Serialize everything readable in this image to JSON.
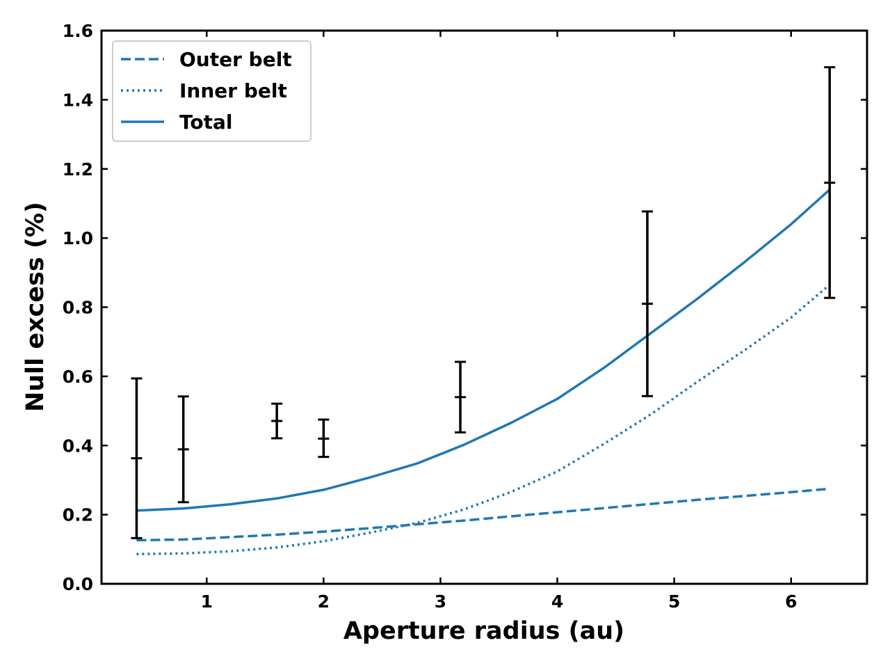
{
  "chart_data": {
    "type": "line",
    "xlabel": "Aperture radius (au)",
    "ylabel": "Null excess (%)",
    "xlim": [
      0.1,
      6.65
    ],
    "ylim": [
      0.0,
      1.6
    ],
    "xticks": [
      1,
      2,
      3,
      4,
      5,
      6
    ],
    "yticks": [
      0.0,
      0.2,
      0.4,
      0.6,
      0.8,
      1.0,
      1.2,
      1.4,
      1.6
    ],
    "xtick_labels": [
      "1",
      "2",
      "3",
      "4",
      "5",
      "6"
    ],
    "ytick_labels": [
      "0.0",
      "0.2",
      "0.4",
      "0.6",
      "0.8",
      "1.0",
      "1.2",
      "1.4",
      "1.6"
    ],
    "grid": false,
    "legend_position": "top-left",
    "color": "#1f77b4",
    "series": [
      {
        "name": "Outer belt",
        "style": "dashed",
        "x": [
          0.4,
          0.8,
          1.2,
          1.6,
          2.0,
          2.4,
          2.8,
          3.2,
          3.6,
          4.0,
          4.4,
          4.8,
          5.2,
          5.6,
          6.0,
          6.33
        ],
        "y": [
          0.126,
          0.128,
          0.135,
          0.142,
          0.151,
          0.161,
          0.172,
          0.183,
          0.195,
          0.207,
          0.219,
          0.231,
          0.243,
          0.254,
          0.265,
          0.275
        ]
      },
      {
        "name": "Inner belt",
        "style": "dotted",
        "x": [
          0.4,
          0.8,
          1.2,
          1.6,
          2.0,
          2.4,
          2.8,
          3.2,
          3.6,
          4.0,
          4.4,
          4.8,
          5.2,
          5.6,
          6.0,
          6.33
        ],
        "y": [
          0.086,
          0.088,
          0.094,
          0.105,
          0.123,
          0.148,
          0.176,
          0.215,
          0.265,
          0.325,
          0.405,
          0.49,
          0.585,
          0.675,
          0.77,
          0.865
        ]
      },
      {
        "name": "Total",
        "style": "solid",
        "x": [
          0.4,
          0.8,
          1.2,
          1.6,
          2.0,
          2.4,
          2.8,
          3.2,
          3.6,
          4.0,
          4.4,
          4.8,
          5.2,
          5.6,
          6.0,
          6.33
        ],
        "y": [
          0.212,
          0.218,
          0.23,
          0.247,
          0.272,
          0.308,
          0.348,
          0.402,
          0.465,
          0.535,
          0.625,
          0.725,
          0.825,
          0.93,
          1.04,
          1.14
        ]
      }
    ],
    "errorbars": [
      {
        "x": 0.4,
        "y": 0.363,
        "ylow": 0.132,
        "yhigh": 0.594
      },
      {
        "x": 0.8,
        "y": 0.389,
        "ylow": 0.236,
        "yhigh": 0.542
      },
      {
        "x": 1.6,
        "y": 0.471,
        "ylow": 0.421,
        "yhigh": 0.521
      },
      {
        "x": 2.0,
        "y": 0.42,
        "ylow": 0.367,
        "yhigh": 0.475
      },
      {
        "x": 3.17,
        "y": 0.54,
        "ylow": 0.438,
        "yhigh": 0.642
      },
      {
        "x": 4.77,
        "y": 0.81,
        "ylow": 0.543,
        "yhigh": 1.077
      },
      {
        "x": 6.33,
        "y": 1.16,
        "ylow": 0.827,
        "yhigh": 1.494
      }
    ]
  }
}
